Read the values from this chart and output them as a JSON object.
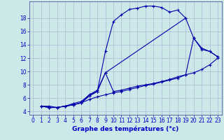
{
  "background_color": "#cce8e8",
  "grid_color": "#aaaacc",
  "line_color": "#0000aa",
  "xlabel": "Graphe des températures (°c)",
  "xlabel_fontsize": 6.5,
  "xlabel_color": "#0000cc",
  "tick_color": "#0000cc",
  "tick_fontsize": 5.5,
  "xlim": [
    -0.5,
    23.5
  ],
  "ylim": [
    3.5,
    20.5
  ],
  "yticks": [
    4,
    6,
    8,
    10,
    12,
    14,
    16,
    18
  ],
  "xticks": [
    0,
    1,
    2,
    3,
    4,
    5,
    6,
    7,
    8,
    9,
    10,
    11,
    12,
    13,
    14,
    15,
    16,
    17,
    18,
    19,
    20,
    21,
    22,
    23
  ],
  "series": [
    {
      "x": [
        1,
        2,
        3,
        4,
        5,
        6,
        7,
        8,
        9,
        10,
        11,
        12,
        13,
        14,
        15,
        16,
        17,
        18,
        19
      ],
      "y": [
        4.8,
        4.8,
        4.6,
        4.8,
        5.2,
        5.5,
        6.5,
        7.0,
        13.0,
        17.5,
        18.5,
        19.3,
        19.5,
        19.8,
        19.8,
        19.6,
        18.9,
        19.2,
        18.0
      ]
    },
    {
      "x": [
        1,
        2,
        3,
        4,
        5,
        6,
        7,
        8,
        9,
        19,
        20,
        21,
        22,
        23
      ],
      "y": [
        4.8,
        4.6,
        4.6,
        4.8,
        5.0,
        5.3,
        6.5,
        7.2,
        9.8,
        18.0,
        15.0,
        13.3,
        13.0,
        12.2
      ]
    },
    {
      "x": [
        1,
        2,
        3,
        4,
        5,
        6,
        7,
        8,
        9,
        10,
        11,
        12,
        13,
        14,
        15,
        16,
        17,
        18,
        19,
        20,
        21,
        22,
        23
      ],
      "y": [
        4.8,
        4.6,
        4.6,
        4.8,
        5.0,
        5.3,
        6.3,
        7.0,
        9.8,
        7.0,
        7.2,
        7.5,
        7.8,
        8.0,
        8.2,
        8.5,
        8.8,
        9.2,
        9.5,
        15.0,
        13.5,
        13.0,
        12.2
      ]
    },
    {
      "x": [
        1,
        2,
        3,
        4,
        5,
        6,
        7,
        8,
        9,
        10,
        11,
        12,
        13,
        14,
        15,
        16,
        17,
        18,
        19,
        20,
        21,
        22,
        23
      ],
      "y": [
        4.8,
        4.6,
        4.6,
        4.8,
        5.0,
        5.3,
        5.8,
        6.2,
        6.5,
        6.8,
        7.0,
        7.3,
        7.6,
        7.9,
        8.1,
        8.4,
        8.7,
        9.0,
        9.5,
        9.8,
        10.3,
        11.0,
        12.0
      ]
    }
  ]
}
